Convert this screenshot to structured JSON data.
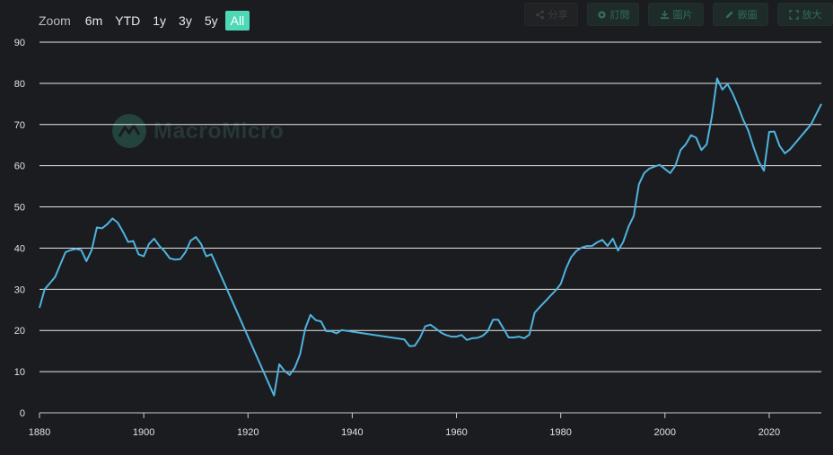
{
  "zoom": {
    "label": "Zoom",
    "options": [
      {
        "label": "6m",
        "active": false
      },
      {
        "label": "YTD",
        "active": false
      },
      {
        "label": "1y",
        "active": false
      },
      {
        "label": "3y",
        "active": false
      },
      {
        "label": "5y",
        "active": false
      },
      {
        "label": "All",
        "active": true
      }
    ]
  },
  "toolbar": {
    "share_label": "分享",
    "subscribe_label": "訂閱",
    "image_label": "圖片",
    "embed_label": "嵌圖",
    "enlarge_label": "放大"
  },
  "watermark": {
    "text": "MacroMicro"
  },
  "colors": {
    "background": "#1b1c1f",
    "line": "#4fb3e0",
    "grid": "#e8e8e8",
    "accent": "#4fd8b6"
  },
  "chart_data": {
    "type": "line",
    "title": "",
    "xlabel": "",
    "ylabel": "",
    "xlim": [
      1880,
      2030
    ],
    "ylim": [
      0,
      90
    ],
    "x_ticks": [
      1880,
      1900,
      1920,
      1940,
      1960,
      1980,
      2000,
      2020
    ],
    "y_ticks": [
      0,
      10,
      20,
      30,
      40,
      50,
      60,
      70,
      80,
      90
    ],
    "grid": true,
    "series": [
      {
        "name": "",
        "x": [
          1880,
          1881,
          1882,
          1883,
          1884,
          1885,
          1886,
          1887,
          1888,
          1889,
          1890,
          1891,
          1892,
          1893,
          1894,
          1895,
          1896,
          1897,
          1898,
          1899,
          1900,
          1901,
          1902,
          1903,
          1904,
          1905,
          1906,
          1907,
          1908,
          1909,
          1910,
          1911,
          1912,
          1913,
          1925,
          1926,
          1927,
          1928,
          1929,
          1930,
          1931,
          1932,
          1933,
          1934,
          1935,
          1936,
          1937,
          1938,
          1950,
          1951,
          1952,
          1953,
          1954,
          1955,
          1956,
          1957,
          1958,
          1959,
          1960,
          1961,
          1962,
          1963,
          1964,
          1965,
          1966,
          1967,
          1968,
          1969,
          1970,
          1971,
          1972,
          1973,
          1974,
          1975,
          1976,
          1977,
          1978,
          1979,
          1980,
          1981,
          1982,
          1983,
          1984,
          1985,
          1986,
          1987,
          1988,
          1989,
          1990,
          1991,
          1992,
          1993,
          1994,
          1995,
          1996,
          1997,
          1998,
          1999,
          2000,
          2001,
          2002,
          2003,
          2004,
          2005,
          2006,
          2007,
          2008,
          2009,
          2010,
          2011,
          2012,
          2013,
          2014,
          2015,
          2016,
          2017,
          2018,
          2019,
          2020,
          2021,
          2022,
          2023,
          2024,
          2025,
          2026,
          2027,
          2028,
          2029,
          2030
        ],
        "y": [
          25.5,
          30,
          31.5,
          33,
          36,
          39,
          39.5,
          39.8,
          39.5,
          36.8,
          39.5,
          45,
          44.8,
          45.8,
          47.2,
          46.2,
          44,
          41.5,
          41.7,
          38.5,
          38,
          41,
          42.3,
          40.5,
          39.2,
          37.5,
          37.2,
          37.3,
          39,
          41.8,
          42.7,
          41,
          38,
          38.5,
          4.2,
          11.8,
          10.2,
          9.2,
          11,
          14.2,
          20.5,
          23.8,
          22.5,
          22.2,
          19.8,
          19.8,
          19.3,
          20.1,
          17.8,
          16.2,
          16.3,
          18.2,
          21,
          21.4,
          20.5,
          19.5,
          18.9,
          18.5,
          18.5,
          18.9,
          17.7,
          18.1,
          18.2,
          18.7,
          19.8,
          22.6,
          22.6,
          20.5,
          18.3,
          18.3,
          18.5,
          18.1,
          19,
          24.3,
          25.7,
          27,
          28.4,
          29.7,
          31.3,
          35,
          37.8,
          39.3,
          40.1,
          40.5,
          40.5,
          41.4,
          42,
          40.5,
          42.3,
          39.4,
          41.5,
          45.2,
          47.8,
          55.5,
          58.2,
          59.3,
          59.8,
          60.2,
          59.2,
          58.2,
          60,
          63.8,
          65.2,
          67.4,
          66.8,
          63.8,
          65.2,
          72,
          81.2,
          78.5,
          79.8,
          77.5,
          74.5,
          71.2,
          68.5,
          64.5,
          61,
          58.8,
          68.2,
          68.3,
          64.8,
          63,
          64,
          65.5,
          67,
          68.5,
          70,
          72.5,
          75
        ]
      }
    ]
  }
}
